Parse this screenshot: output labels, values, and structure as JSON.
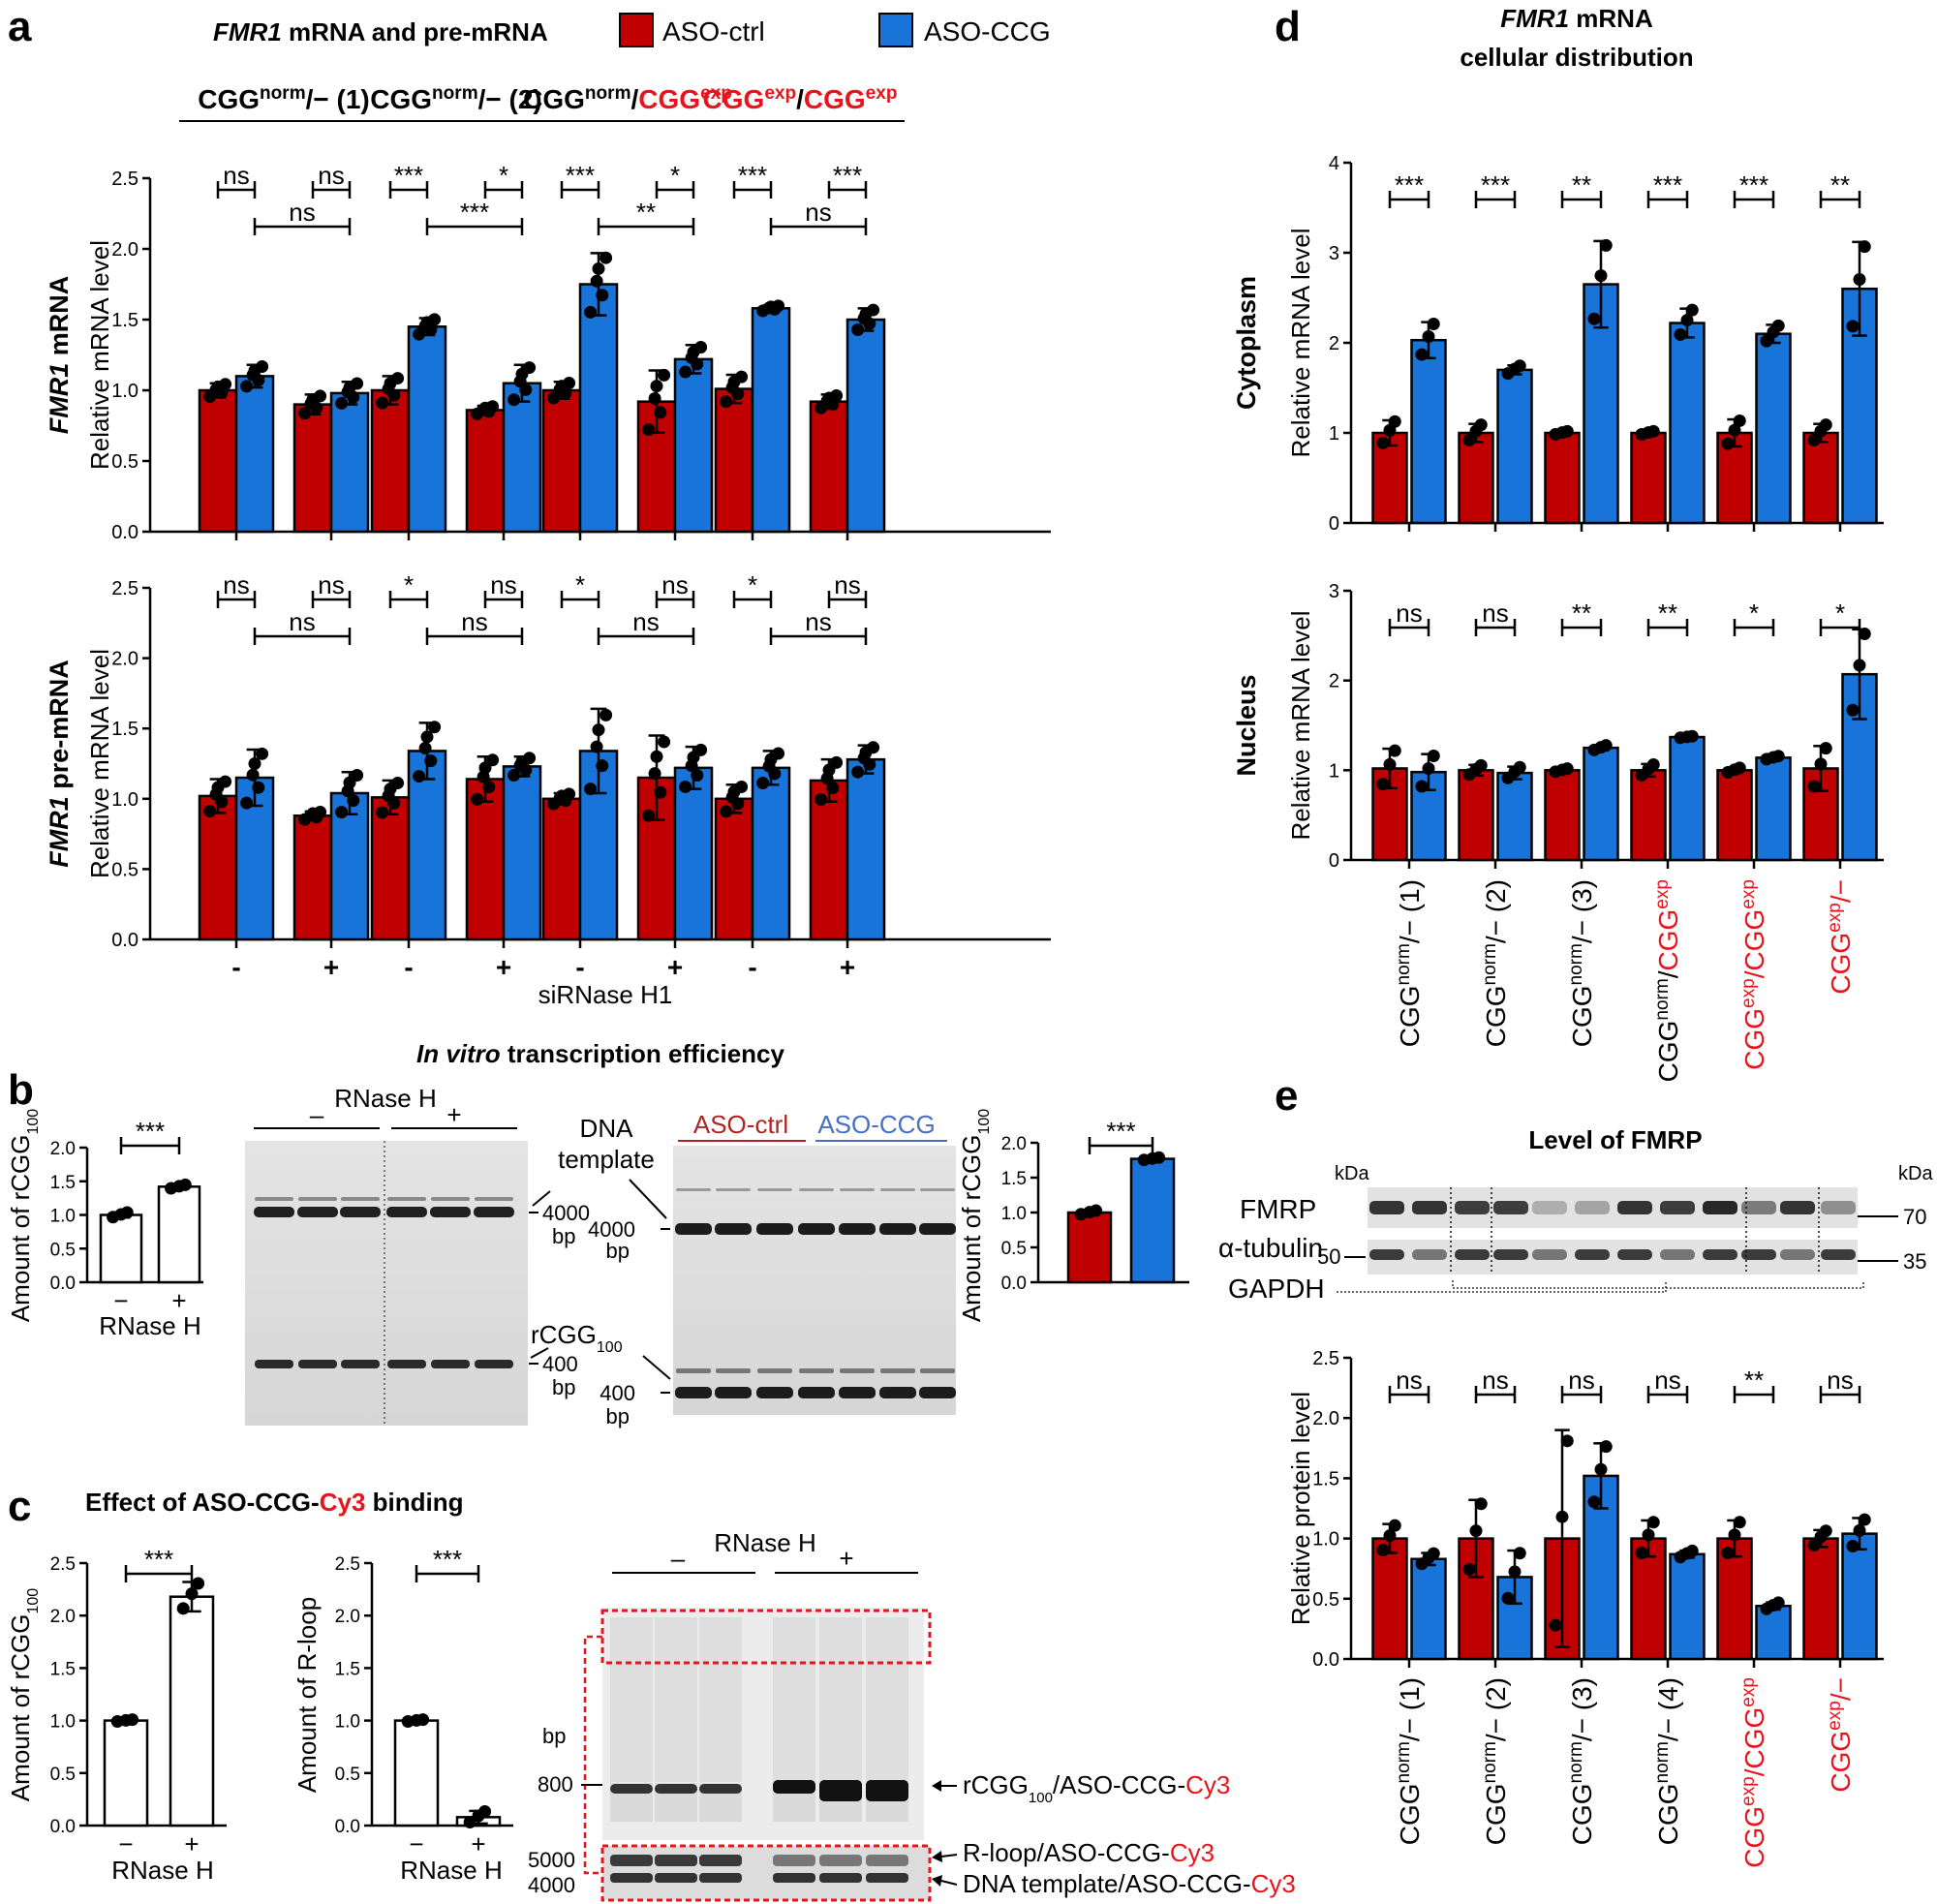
{
  "colors": {
    "red": "#c00000",
    "blue": "#1874d9",
    "label_red": "#e8141b",
    "label_blue": "#4a6fc0"
  },
  "panel_letters": {
    "a": "a",
    "b": "b",
    "c": "c",
    "d": "d",
    "e": "e"
  },
  "panel_a": {
    "title_italic": "FMR1",
    "title_rest": " mRNA and pre-mRNA",
    "legend": [
      "ASO-ctrl",
      "ASO-CCG"
    ],
    "group_headers": [
      [
        {
          "t": "CGG",
          "c": "k"
        },
        {
          "t": "norm",
          "c": "k",
          "sup": true
        },
        {
          "t": "/− (1)",
          "c": "k"
        }
      ],
      [
        {
          "t": "CGG",
          "c": "k"
        },
        {
          "t": "norm",
          "c": "k",
          "sup": true
        },
        {
          "t": "/− (2)",
          "c": "k"
        }
      ],
      [
        {
          "t": "CGG",
          "c": "k"
        },
        {
          "t": "norm",
          "c": "k",
          "sup": true
        },
        {
          "t": "/",
          "c": "k"
        },
        {
          "t": "CGG",
          "c": "r"
        },
        {
          "t": "exp",
          "c": "r",
          "sup": true
        }
      ],
      [
        {
          "t": "CGG",
          "c": "r"
        },
        {
          "t": "exp",
          "c": "r",
          "sup": true
        },
        {
          "t": "/",
          "c": "k"
        },
        {
          "t": "CGG",
          "c": "r"
        },
        {
          "t": "exp",
          "c": "r",
          "sup": true
        }
      ]
    ],
    "x_ticks": [
      "-",
      "+",
      "-",
      "+",
      "-",
      "+",
      "-",
      "+"
    ],
    "x_label": "siRNase H1",
    "charts": [
      {
        "row_label_italic": "FMR1",
        "row_label_rest": " mRNA",
        "ylabel": "Relative mRNA level",
        "ylim": [
          0,
          2.5
        ],
        "yticks": [
          "0.0",
          "0.5",
          "1.0",
          "1.5",
          "2.0",
          "2.5"
        ],
        "values": [
          1.0,
          1.1,
          0.9,
          0.98,
          1.0,
          1.45,
          0.86,
          1.05,
          1.0,
          1.75,
          0.92,
          1.22,
          1.01,
          1.58,
          0.92,
          1.5
        ],
        "errors": [
          0.05,
          0.08,
          0.07,
          0.08,
          0.1,
          0.06,
          0.03,
          0.13,
          0.06,
          0.22,
          0.22,
          0.1,
          0.1,
          0.02,
          0.05,
          0.08
        ],
        "sig_pairs": [
          "ns",
          "ns",
          "***",
          "*",
          "***",
          "*",
          "***",
          "***"
        ],
        "sig_long": [
          "ns",
          "***",
          "**",
          "ns"
        ]
      },
      {
        "row_label_italic": "FMR1",
        "row_label_rest": " pre-mRNA",
        "ylabel": "Relative mRNA level",
        "ylim": [
          0,
          2.5
        ],
        "yticks": [
          "0.0",
          "0.5",
          "1.0",
          "1.5",
          "2.0",
          "2.5"
        ],
        "values": [
          1.02,
          1.15,
          0.88,
          1.04,
          1.01,
          1.34,
          1.14,
          1.23,
          1.0,
          1.34,
          1.15,
          1.22,
          1.0,
          1.22,
          1.13,
          1.28
        ],
        "errors": [
          0.12,
          0.2,
          0.03,
          0.15,
          0.12,
          0.2,
          0.16,
          0.07,
          0.04,
          0.3,
          0.3,
          0.15,
          0.1,
          0.12,
          0.15,
          0.1
        ],
        "sig_pairs": [
          "ns",
          "ns",
          "*",
          "ns",
          "*",
          "ns",
          "*",
          "ns"
        ],
        "sig_long": [
          "ns",
          "ns",
          "ns",
          "ns"
        ]
      }
    ]
  },
  "panel_b": {
    "title_italic": "In vitro",
    "title_rest": " transcription efficiency",
    "ylabel": "Amount of rCGG",
    "ylabel_sub": "100",
    "yticks": [
      "0.0",
      "0.5",
      "1.0",
      "1.5",
      "2.0"
    ],
    "left_bars": [
      1.0,
      1.42
    ],
    "left_err": [
      0.04,
      0.03
    ],
    "left_xticks": [
      "−",
      "+"
    ],
    "left_xlabel": "RNase H",
    "left_sig": "***",
    "right_bars": [
      1.0,
      1.77
    ],
    "right_err": [
      0.03,
      0.02
    ],
    "right_sig": "***",
    "gel1": {
      "header": "RNase H",
      "minus": "–",
      "plus": "+",
      "marker_top": "4000",
      "marker_top_unit": "bp",
      "marker_bottom": "400",
      "marker_bottom_unit": "bp",
      "band_label": "rCGG",
      "band_label_sub": "100"
    },
    "gel2": {
      "dna_template_1": "DNA",
      "dna_template_2": "template",
      "label_ctrl": "ASO-ctrl",
      "label_ccg": "ASO-CCG",
      "marker_top": "4000",
      "marker_top_unit": "bp",
      "marker_bottom": "400",
      "marker_bottom_unit": "bp"
    }
  },
  "panel_c": {
    "title_pre": "Effect of ASO-CCG-",
    "title_cy3": "Cy3",
    "title_post": " binding",
    "chart1": {
      "ylabel": "Amount of rCGG",
      "ylabel_sub": "100",
      "yticks": [
        "0.0",
        "0.5",
        "1.0",
        "1.5",
        "2.0",
        "2.5"
      ],
      "values": [
        1.0,
        2.18
      ],
      "errors": [
        0.01,
        0.14
      ],
      "xticks": [
        "−",
        "+"
      ],
      "xlabel": "RNase H",
      "sig": "***"
    },
    "chart2": {
      "ylabel": "Amount of R-loop",
      "yticks": [
        "0.0",
        "0.5",
        "1.0",
        "1.5",
        "2.0",
        "2.5"
      ],
      "values": [
        1.0,
        0.08
      ],
      "errors": [
        0.01,
        0.06
      ],
      "xticks": [
        "−",
        "+"
      ],
      "xlabel": "RNase H",
      "sig": "***"
    },
    "gel": {
      "header": "RNase H",
      "minus": "–",
      "plus": "+",
      "bp": "bp",
      "m800": "800",
      "m5000": "5000",
      "m4000": "4000",
      "band1_pre": "rCGG",
      "band1_sub": "100",
      "band1_post": "/ASO-CCG-",
      "band2_pre": "R-loop/ASO-CCG-",
      "band3_pre": "DNA template/ASO-CCG-",
      "cy3": "Cy3"
    }
  },
  "panel_d": {
    "title_italic": "FMR1",
    "title_rest": " mRNA",
    "title_line2": "cellular distribution",
    "x_labels": [
      [
        {
          "t": "CGG",
          "c": "k"
        },
        {
          "t": "norm",
          "c": "k",
          "sup": true
        },
        {
          "t": "/− (1)",
          "c": "k"
        }
      ],
      [
        {
          "t": "CGG",
          "c": "k"
        },
        {
          "t": "norm",
          "c": "k",
          "sup": true
        },
        {
          "t": "/− (2)",
          "c": "k"
        }
      ],
      [
        {
          "t": "CGG",
          "c": "k"
        },
        {
          "t": "norm",
          "c": "k",
          "sup": true
        },
        {
          "t": "/− (3)",
          "c": "k"
        }
      ],
      [
        {
          "t": "CGG",
          "c": "k"
        },
        {
          "t": "norm",
          "c": "k",
          "sup": true
        },
        {
          "t": "/",
          "c": "k"
        },
        {
          "t": "CGG",
          "c": "r"
        },
        {
          "t": "exp",
          "c": "r",
          "sup": true
        }
      ],
      [
        {
          "t": "CGG",
          "c": "r"
        },
        {
          "t": "exp",
          "c": "r",
          "sup": true
        },
        {
          "t": "/",
          "c": "r"
        },
        {
          "t": "CGG",
          "c": "r"
        },
        {
          "t": "exp",
          "c": "r",
          "sup": true
        }
      ],
      [
        {
          "t": "CGG",
          "c": "r"
        },
        {
          "t": "exp",
          "c": "r",
          "sup": true
        },
        {
          "t": "/−",
          "c": "r"
        }
      ]
    ],
    "charts": [
      {
        "row_label": "Cytoplasm",
        "ylabel": "Relative mRNA level",
        "ylim": [
          0,
          4
        ],
        "yticks": [
          "0",
          "1",
          "2",
          "3",
          "4"
        ],
        "values": [
          1.0,
          2.03,
          1.0,
          1.7,
          1.0,
          2.65,
          1.0,
          2.22,
          1.0,
          2.1,
          1.0,
          2.6
        ],
        "errors": [
          0.14,
          0.2,
          0.1,
          0.05,
          0.02,
          0.48,
          0.02,
          0.16,
          0.15,
          0.1,
          0.1,
          0.52
        ],
        "sig": [
          "***",
          "***",
          "**",
          "***",
          "***",
          "**"
        ]
      },
      {
        "row_label": "Nucleus",
        "ylabel": "Relative mRNA level",
        "ylim": [
          0,
          3
        ],
        "yticks": [
          "0",
          "1",
          "2",
          "3"
        ],
        "values": [
          1.02,
          0.98,
          1.0,
          0.97,
          1.0,
          1.25,
          1.0,
          1.37,
          1.0,
          1.14,
          1.02,
          2.07
        ],
        "errors": [
          0.22,
          0.2,
          0.06,
          0.07,
          0.02,
          0.03,
          0.07,
          0.01,
          0.03,
          0.02,
          0.25,
          0.5
        ],
        "sig": [
          "ns",
          "ns",
          "**",
          "**",
          "*",
          "*"
        ]
      }
    ]
  },
  "panel_e": {
    "blot_title": "Level of FMRP",
    "kda_left": "kDa",
    "kda_right": "kDa",
    "fmrp": "FMRP",
    "tubulin": "α-tubulin",
    "gapdh": "GAPDH",
    "m50": "50",
    "m70": "70",
    "m35": "35",
    "chart": {
      "ylabel": "Relative protein level",
      "ylim": [
        0,
        2.5
      ],
      "yticks": [
        "0.0",
        "0.5",
        "1.0",
        "1.5",
        "2.0",
        "2.5"
      ],
      "values": [
        1.0,
        0.83,
        1.0,
        0.68,
        1.0,
        1.52,
        1.0,
        0.87,
        1.0,
        0.44,
        1.0,
        1.04
      ],
      "errors": [
        0.12,
        0.05,
        0.32,
        0.22,
        0.9,
        0.27,
        0.15,
        0.03,
        0.15,
        0.03,
        0.07,
        0.13
      ],
      "sig": [
        "ns",
        "ns",
        "ns",
        "ns",
        "**",
        "ns"
      ]
    },
    "x_labels": [
      [
        {
          "t": "CGG",
          "c": "k"
        },
        {
          "t": "norm",
          "c": "k",
          "sup": true
        },
        {
          "t": "/− (1)",
          "c": "k"
        }
      ],
      [
        {
          "t": "CGG",
          "c": "k"
        },
        {
          "t": "norm",
          "c": "k",
          "sup": true
        },
        {
          "t": "/− (2)",
          "c": "k"
        }
      ],
      [
        {
          "t": "CGG",
          "c": "k"
        },
        {
          "t": "norm",
          "c": "k",
          "sup": true
        },
        {
          "t": "/− (3)",
          "c": "k"
        }
      ],
      [
        {
          "t": "CGG",
          "c": "k"
        },
        {
          "t": "norm",
          "c": "k",
          "sup": true
        },
        {
          "t": "/− (4)",
          "c": "k"
        }
      ],
      [
        {
          "t": "CGG",
          "c": "r"
        },
        {
          "t": "exp",
          "c": "r",
          "sup": true
        },
        {
          "t": "/",
          "c": "r"
        },
        {
          "t": "CGG",
          "c": "r"
        },
        {
          "t": "exp",
          "c": "r",
          "sup": true
        }
      ],
      [
        {
          "t": "CGG",
          "c": "r"
        },
        {
          "t": "exp",
          "c": "r",
          "sup": true
        },
        {
          "t": "/−",
          "c": "r"
        }
      ]
    ]
  },
  "chart_data": [
    {
      "type": "bar",
      "title": "FMR1 mRNA",
      "ylabel": "Relative mRNA level",
      "ylim": [
        0,
        2.5
      ],
      "categories": [
        "CGGnorm/− (1) -",
        "CGGnorm/− (1) +",
        "CGGnorm/− (2) -",
        "CGGnorm/− (2) +",
        "CGGnorm/CGGexp -",
        "CGGnorm/CGGexp +",
        "CGGexp/CGGexp -",
        "CGGexp/CGGexp +"
      ],
      "series": [
        {
          "name": "ASO-ctrl",
          "values": [
            1.0,
            0.9,
            1.0,
            0.86,
            1.0,
            0.92,
            1.01,
            0.92
          ]
        },
        {
          "name": "ASO-CCG",
          "values": [
            1.1,
            0.98,
            1.45,
            1.05,
            1.75,
            1.22,
            1.58,
            1.5
          ]
        }
      ]
    },
    {
      "type": "bar",
      "title": "FMR1 pre-mRNA",
      "ylabel": "Relative mRNA level",
      "ylim": [
        0,
        2.5
      ],
      "categories": [
        "CGGnorm/− (1) -",
        "CGGnorm/− (1) +",
        "CGGnorm/− (2) -",
        "CGGnorm/− (2) +",
        "CGGnorm/CGGexp -",
        "CGGnorm/CGGexp +",
        "CGGexp/CGGexp -",
        "CGGexp/CGGexp +"
      ],
      "series": [
        {
          "name": "ASO-ctrl",
          "values": [
            1.02,
            0.88,
            1.01,
            1.14,
            1.0,
            1.15,
            1.0,
            1.13
          ]
        },
        {
          "name": "ASO-CCG",
          "values": [
            1.15,
            1.04,
            1.34,
            1.23,
            1.34,
            1.22,
            1.22,
            1.28
          ]
        }
      ]
    },
    {
      "type": "bar",
      "title": "In vitro transcription efficiency (RNase H)",
      "ylabel": "Amount of rCGG100",
      "ylim": [
        0,
        2.0
      ],
      "categories": [
        "−",
        "+"
      ],
      "values": [
        1.0,
        1.42
      ]
    },
    {
      "type": "bar",
      "title": "In vitro transcription efficiency (ASO)",
      "ylabel": "Amount of rCGG100",
      "ylim": [
        0,
        2.0
      ],
      "categories": [
        "ASO-ctrl",
        "ASO-CCG"
      ],
      "values": [
        1.0,
        1.77
      ]
    },
    {
      "type": "bar",
      "title": "Effect of ASO-CCG-Cy3 binding: rCGG100",
      "ylabel": "Amount of rCGG100",
      "ylim": [
        0,
        2.5
      ],
      "categories": [
        "−",
        "+"
      ],
      "values": [
        1.0,
        2.18
      ]
    },
    {
      "type": "bar",
      "title": "Effect of ASO-CCG-Cy3 binding: R-loop",
      "ylabel": "Amount of R-loop",
      "ylim": [
        0,
        2.5
      ],
      "categories": [
        "−",
        "+"
      ],
      "values": [
        1.0,
        0.08
      ]
    },
    {
      "type": "bar",
      "title": "FMR1 mRNA Cytoplasm",
      "ylabel": "Relative mRNA level",
      "ylim": [
        0,
        4
      ],
      "categories": [
        "CGGnorm/− (1)",
        "CGGnorm/− (2)",
        "CGGnorm/− (3)",
        "CGGnorm/CGGexp",
        "CGGexp/CGGexp",
        "CGGexp/−"
      ],
      "series": [
        {
          "name": "ASO-ctrl",
          "values": [
            1.0,
            1.0,
            1.0,
            1.0,
            1.0,
            1.0
          ]
        },
        {
          "name": "ASO-CCG",
          "values": [
            2.03,
            1.7,
            2.65,
            2.22,
            2.1,
            2.6
          ]
        }
      ]
    },
    {
      "type": "bar",
      "title": "FMR1 mRNA Nucleus",
      "ylabel": "Relative mRNA level",
      "ylim": [
        0,
        3
      ],
      "categories": [
        "CGGnorm/− (1)",
        "CGGnorm/− (2)",
        "CGGnorm/− (3)",
        "CGGnorm/CGGexp",
        "CGGexp/CGGexp",
        "CGGexp/−"
      ],
      "series": [
        {
          "name": "ASO-ctrl",
          "values": [
            1.02,
            1.0,
            1.0,
            1.0,
            1.0,
            1.02
          ]
        },
        {
          "name": "ASO-CCG",
          "values": [
            0.98,
            0.97,
            1.25,
            1.37,
            1.14,
            2.07
          ]
        }
      ]
    },
    {
      "type": "bar",
      "title": "Level of FMRP",
      "ylabel": "Relative protein level",
      "ylim": [
        0,
        2.5
      ],
      "categories": [
        "CGGnorm/− (1)",
        "CGGnorm/− (2)",
        "CGGnorm/− (3)",
        "CGGnorm/− (4)",
        "CGGexp/CGGexp",
        "CGGexp/−"
      ],
      "series": [
        {
          "name": "ASO-ctrl",
          "values": [
            1.0,
            1.0,
            1.0,
            1.0,
            1.0,
            1.0
          ]
        },
        {
          "name": "ASO-CCG",
          "values": [
            0.83,
            0.68,
            1.52,
            0.87,
            0.44,
            1.04
          ]
        }
      ]
    }
  ]
}
